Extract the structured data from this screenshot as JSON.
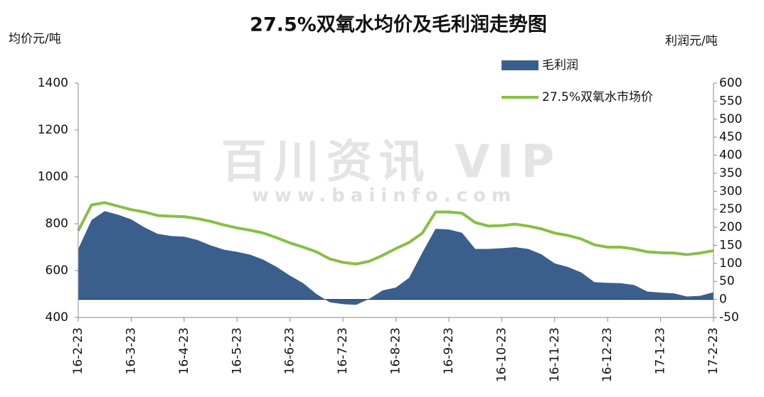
{
  "chart_data": {
    "type": "line",
    "title": "27.5%双氧水均价及毛利润走势图",
    "y_label": "均价元/吨",
    "y2_label": "利润元/吨",
    "watermark": "百川资讯 VIP",
    "watermark_url": "www.baiinfo.com",
    "categories": [
      "16-2-23",
      null,
      null,
      null,
      "16-3-23",
      null,
      null,
      null,
      "16-4-23",
      null,
      null,
      null,
      "16-5-23",
      null,
      null,
      null,
      "16-6-23",
      null,
      null,
      null,
      "16-7-23",
      null,
      null,
      null,
      "16-8-23",
      null,
      null,
      null,
      "16-9-23",
      null,
      null,
      null,
      "16-10-23",
      null,
      null,
      null,
      "16-11-23",
      null,
      null,
      null,
      "16-12-23",
      null,
      null,
      null,
      "17-1-23",
      null,
      null,
      null,
      "17-2-23"
    ],
    "series": [
      {
        "name": "毛利润",
        "type": "area",
        "axis": "y2",
        "color": "#3b5f8c",
        "values": [
          140,
          220,
          245,
          235,
          222,
          200,
          182,
          176,
          174,
          165,
          150,
          138,
          132,
          124,
          110,
          90,
          66,
          45,
          15,
          -8,
          -13,
          -15,
          2,
          25,
          33,
          60,
          130,
          196,
          194,
          185,
          140,
          140,
          142,
          145,
          140,
          125,
          100,
          90,
          75,
          48,
          46,
          45,
          40,
          22,
          19,
          17,
          8,
          10,
          20
        ]
      },
      {
        "name": "27.5%双氧水市场价",
        "type": "line",
        "color": "#86c042",
        "values": [
          770,
          880,
          890,
          875,
          860,
          850,
          835,
          832,
          830,
          822,
          810,
          795,
          782,
          772,
          760,
          740,
          718,
          700,
          680,
          650,
          635,
          628,
          640,
          665,
          694,
          720,
          760,
          850,
          850,
          845,
          805,
          790,
          792,
          798,
          790,
          778,
          760,
          750,
          735,
          710,
          700,
          700,
          692,
          680,
          676,
          675,
          668,
          675,
          685
        ]
      }
    ],
    "ylim": [
      400,
      1400
    ],
    "yticks": [
      400,
      600,
      800,
      1000,
      1200,
      1400
    ],
    "y2lim": [
      -50,
      600
    ],
    "y2ticks": [
      -50,
      0,
      50,
      100,
      150,
      200,
      250,
      300,
      350,
      400,
      450,
      500,
      550,
      600
    ],
    "legend": "upper right",
    "grid": false
  }
}
